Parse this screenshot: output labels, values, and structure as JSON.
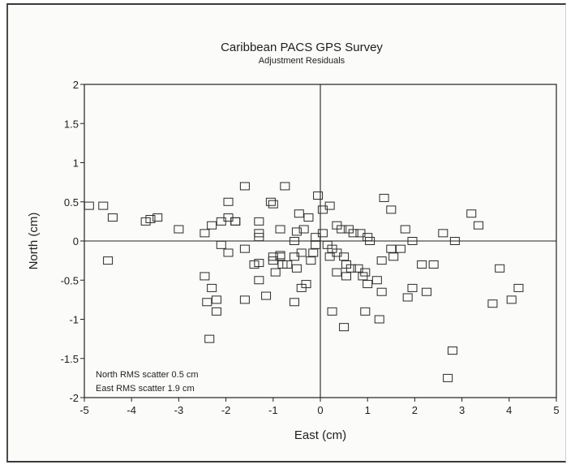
{
  "chart_data": {
    "type": "scatter",
    "title": "Caribbean PACS GPS Survey",
    "subtitle": "Adjustment Residuals",
    "xlabel": "East (cm)",
    "ylabel": "North (cm)",
    "xlim": [
      -5,
      5
    ],
    "ylim": [
      -2,
      2
    ],
    "xticks": [
      "-5",
      "-4",
      "-3",
      "-2",
      "-1",
      "0",
      "1",
      "2",
      "3",
      "4",
      "5"
    ],
    "yticks": [
      "-2",
      "-1.5",
      "-1",
      "-0.5",
      "0",
      "0.5",
      "1",
      "1.5",
      "2"
    ],
    "grid": false,
    "marker": "open-square",
    "annotations": [
      "North RMS scatter 0.5 cm",
      "East RMS scatter 1.9 cm"
    ],
    "series": [
      {
        "x": [
          -4.9,
          -4.6,
          -4.4,
          -3.7,
          -3.6,
          -3.45,
          -3.0,
          -2.45,
          -2.3,
          -2.1,
          -1.95,
          -1.8,
          -1.6,
          -1.3,
          -1.05,
          -1.0,
          -0.85,
          -0.75,
          -0.5,
          -0.45,
          -0.25,
          -0.05,
          -2.45,
          -2.3,
          -2.1,
          -1.95,
          -1.6,
          -1.4,
          -1.0,
          -0.85,
          -0.7,
          -0.55,
          -0.4,
          -0.1,
          0.05,
          -1.95,
          -1.8,
          -1.3,
          -1.3,
          -1.0,
          -0.8,
          -0.5,
          -0.3,
          -0.15,
          0.05,
          0.2,
          0.35,
          0.45,
          0.6,
          0.7,
          0.85,
          1.0,
          1.05,
          1.35,
          1.5,
          1.8,
          1.95,
          1.7,
          1.55,
          1.3,
          0.95,
          0.8,
          0.65,
          0.55,
          0.5,
          0.35,
          0.25,
          0.15,
          -2.2,
          -1.3,
          -1.3,
          -0.95,
          -0.85,
          -0.55,
          -0.35,
          -0.2,
          -0.1,
          0.2,
          0.35,
          0.55,
          0.9,
          1.0,
          1.2,
          1.3,
          1.5,
          1.85,
          1.95,
          2.15,
          2.4,
          2.6,
          2.85,
          3.2,
          3.35,
          -2.4,
          -2.2,
          -1.6,
          -1.15,
          -0.55,
          -0.4,
          0.25,
          0.5,
          0.95,
          1.25,
          2.25,
          2.8,
          2.7,
          3.8,
          3.65,
          4.05,
          4.2,
          -2.35,
          -4.5
        ],
        "y": [
          0.45,
          0.45,
          0.3,
          0.25,
          0.28,
          0.3,
          0.15,
          0.1,
          0.2,
          0.25,
          0.5,
          0.25,
          0.7,
          0.25,
          0.5,
          0.47,
          0.15,
          0.7,
          0.12,
          0.35,
          0.3,
          0.58,
          -0.45,
          -0.6,
          -0.05,
          -0.15,
          -0.1,
          -0.3,
          -0.2,
          -0.18,
          -0.3,
          -0.2,
          -0.15,
          0.05,
          0.1,
          0.3,
          0.25,
          0.1,
          0.05,
          -0.25,
          -0.3,
          -0.35,
          -0.55,
          -0.15,
          0.4,
          0.45,
          0.2,
          0.15,
          0.15,
          0.1,
          0.1,
          0.05,
          0.0,
          0.55,
          0.4,
          0.15,
          0.0,
          -0.1,
          -0.2,
          -0.25,
          -0.4,
          -0.35,
          -0.35,
          -0.3,
          -0.2,
          -0.15,
          -0.1,
          -0.05,
          -0.9,
          -0.5,
          -0.28,
          -0.4,
          -0.2,
          0.0,
          0.15,
          -0.25,
          -0.05,
          -0.2,
          -0.4,
          -0.45,
          -0.45,
          -0.55,
          -0.5,
          -0.65,
          -0.1,
          -0.72,
          -0.6,
          -0.3,
          -0.3,
          0.1,
          0.0,
          0.35,
          0.2,
          -0.78,
          -0.75,
          -0.75,
          -0.7,
          -0.78,
          -0.6,
          -0.9,
          -1.1,
          -0.9,
          -1.0,
          -0.65,
          -1.4,
          -1.75,
          -0.35,
          -0.8,
          -0.75,
          -0.6,
          -1.25,
          -0.25
        ]
      }
    ]
  }
}
